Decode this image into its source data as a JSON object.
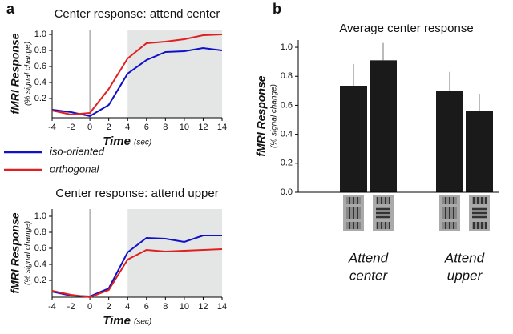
{
  "panels": [
    "a",
    "b"
  ],
  "chart_data": [
    {
      "type": "line",
      "title": "Center response: attend center",
      "y_label": "fMRI Response",
      "y_sublabel": "(% signal change)",
      "x_label": "Time",
      "x_sublabel": "(sec)",
      "x": [
        -4,
        -2,
        0,
        2,
        4,
        6,
        8,
        10,
        12,
        14
      ],
      "series": [
        {
          "name": "iso-oriented",
          "color": "#1010c8",
          "values": [
            0.06,
            0.03,
            -0.02,
            0.12,
            0.51,
            0.68,
            0.78,
            0.79,
            0.83,
            0.8
          ]
        },
        {
          "name": "orthogonal",
          "color": "#e02020",
          "values": [
            0.05,
            0.0,
            0.02,
            0.32,
            0.7,
            0.89,
            0.91,
            0.94,
            0.99,
            1.0
          ]
        }
      ],
      "xlim": [
        -4,
        14
      ],
      "xticks": [
        -4,
        -2,
        0,
        2,
        4,
        6,
        8,
        10,
        12,
        14
      ],
      "ylim": [
        -0.04,
        1.06
      ],
      "yticks": [
        0.2,
        0.4,
        0.6,
        0.8,
        {
          "value": 1,
          "label": "1.0"
        }
      ],
      "shaded_x": [
        4,
        14
      ],
      "vline_x": 0,
      "legend": true
    },
    {
      "type": "line",
      "title": "Center response: attend upper",
      "y_label": "fMRI Response",
      "y_sublabel": "(% signal change)",
      "x_label": "Time",
      "x_sublabel": "(sec)",
      "x": [
        -4,
        -2,
        0,
        2,
        4,
        6,
        8,
        10,
        12,
        14
      ],
      "series": [
        {
          "name": "iso-oriented",
          "color": "#1010c8",
          "values": [
            0.06,
            0.01,
            0.0,
            0.1,
            0.55,
            0.73,
            0.72,
            0.68,
            0.76,
            0.76
          ]
        },
        {
          "name": "orthogonal",
          "color": "#e02020",
          "values": [
            0.07,
            0.02,
            -0.01,
            0.08,
            0.46,
            0.58,
            0.56,
            0.57,
            0.58,
            0.59
          ]
        }
      ],
      "xlim": [
        -4,
        14
      ],
      "xticks": [
        -4,
        -2,
        0,
        2,
        4,
        6,
        8,
        10,
        12,
        14
      ],
      "ylim": [
        -0.01,
        1.09
      ],
      "yticks": [
        0.2,
        0.4,
        0.6,
        0.8,
        {
          "value": 1,
          "label": "1.0"
        }
      ],
      "shaded_x": [
        4,
        14
      ],
      "vline_x": 0,
      "legend": false
    },
    {
      "type": "bar",
      "title": "Average center response",
      "y_label": "fMRI Response",
      "y_sublabel": "(% signal change)",
      "categories": [
        null,
        null,
        null,
        null
      ],
      "values": [
        0.735,
        0.91,
        0.7,
        0.56
      ],
      "errors": [
        0.15,
        0.12,
        0.13,
        0.12
      ],
      "color": "#1a1a1a",
      "group_labels": [
        [
          "Attend",
          "center"
        ],
        [
          "Attend",
          "upper"
        ]
      ],
      "ylim": [
        0,
        1.05
      ],
      "yticks": [
        {
          "value": 0,
          "label": "0.0"
        },
        0.2,
        0.4,
        0.6,
        0.8,
        {
          "value": 1,
          "label": "1.0"
        }
      ]
    }
  ]
}
